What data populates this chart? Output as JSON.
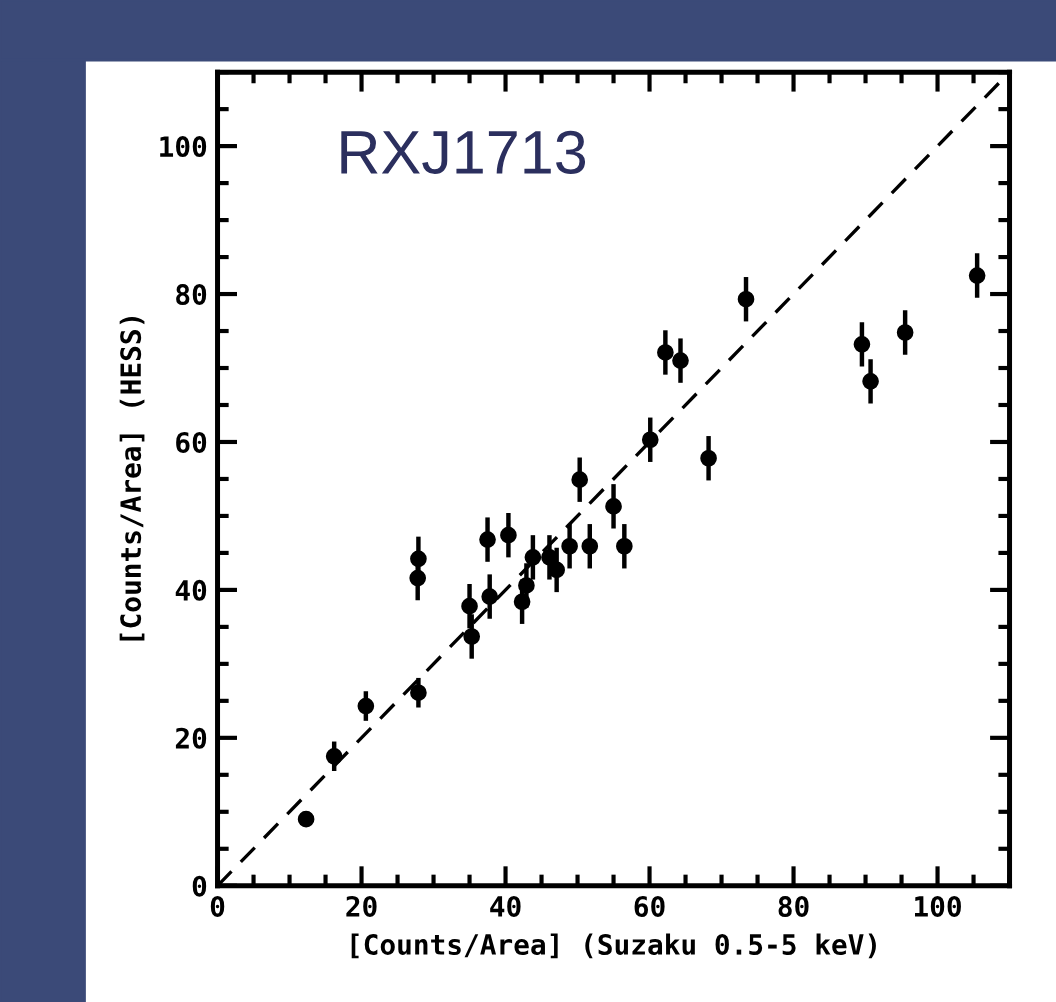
{
  "chart_data": {
    "type": "scatter",
    "annotations": [
      "RXJ1713"
    ],
    "xlabel": "[Counts/Area] (Suzaku 0.5-5 keV)",
    "ylabel": "[Counts/Area] (HESS)",
    "xlim": [
      0,
      110
    ],
    "ylim": [
      0,
      110
    ],
    "xticks": [
      0,
      20,
      40,
      60,
      80,
      100
    ],
    "yticks": [
      0,
      20,
      40,
      60,
      80,
      100
    ],
    "grid": false,
    "legend": false,
    "series": [
      {
        "color": "#000000",
        "marker": "circle",
        "x": [
          12.3,
          16.2,
          20.6,
          27.8,
          27.9,
          27.9,
          35.0,
          35.3,
          37.5,
          37.8,
          40.4,
          42.3,
          42.9,
          43.8,
          46.1,
          47.1,
          48.9,
          50.3,
          51.7,
          55.0,
          56.5,
          60.1,
          62.2,
          64.3,
          68.2,
          73.4,
          89.5,
          90.7,
          95.5,
          105.5
        ],
        "values": [
          9.0,
          17.5,
          24.3,
          41.6,
          44.2,
          26.1,
          37.8,
          33.7,
          46.8,
          39.1,
          47.4,
          38.4,
          40.6,
          44.4,
          44.4,
          42.7,
          45.9,
          54.9,
          45.9,
          51.3,
          45.9,
          60.3,
          72.1,
          71.0,
          57.8,
          79.3,
          73.2,
          68.2,
          74.8,
          82.5
        ],
        "errors": [
          1,
          2,
          2,
          3,
          3,
          2,
          3,
          3,
          3,
          3,
          3,
          3,
          3,
          3,
          3,
          3,
          3,
          3,
          3,
          3,
          3,
          3,
          3,
          3,
          3,
          3,
          3,
          3,
          3,
          3
        ]
      },
      {
        "type": "line",
        "color": "#000000",
        "line_style": "dashed",
        "x": [
          0,
          110
        ],
        "values": [
          0,
          110
        ]
      }
    ]
  }
}
